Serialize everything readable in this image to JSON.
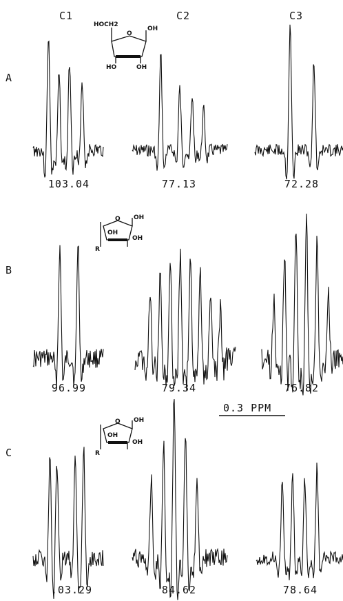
{
  "columns": [
    "C1",
    "C2",
    "C3"
  ],
  "rows": [
    {
      "label": "A",
      "ppm": [
        "103.04",
        "77.13",
        "72.28"
      ]
    },
    {
      "label": "B",
      "ppm": [
        "96.99",
        "79.34",
        "76.82"
      ]
    },
    {
      "label": "C",
      "ppm": [
        ".03.29",
        "84.62",
        "78.64"
      ]
    }
  ],
  "scale_bar": "0.3 PPM",
  "structures": {
    "A": {
      "sub1": "HOCH2",
      "ring_o": "O",
      "oh1": "OH",
      "ho": "HO",
      "oh2": "OH"
    },
    "B": {
      "ring_o": "O",
      "oh1": "OH",
      "oh2": "OH",
      "oh3": "OH",
      "r": "R"
    },
    "C": {
      "ring_o": "O",
      "oh1": "OH",
      "oh2": "OH",
      "oh3": "OH",
      "r": "R"
    }
  },
  "line_color": "#111111"
}
